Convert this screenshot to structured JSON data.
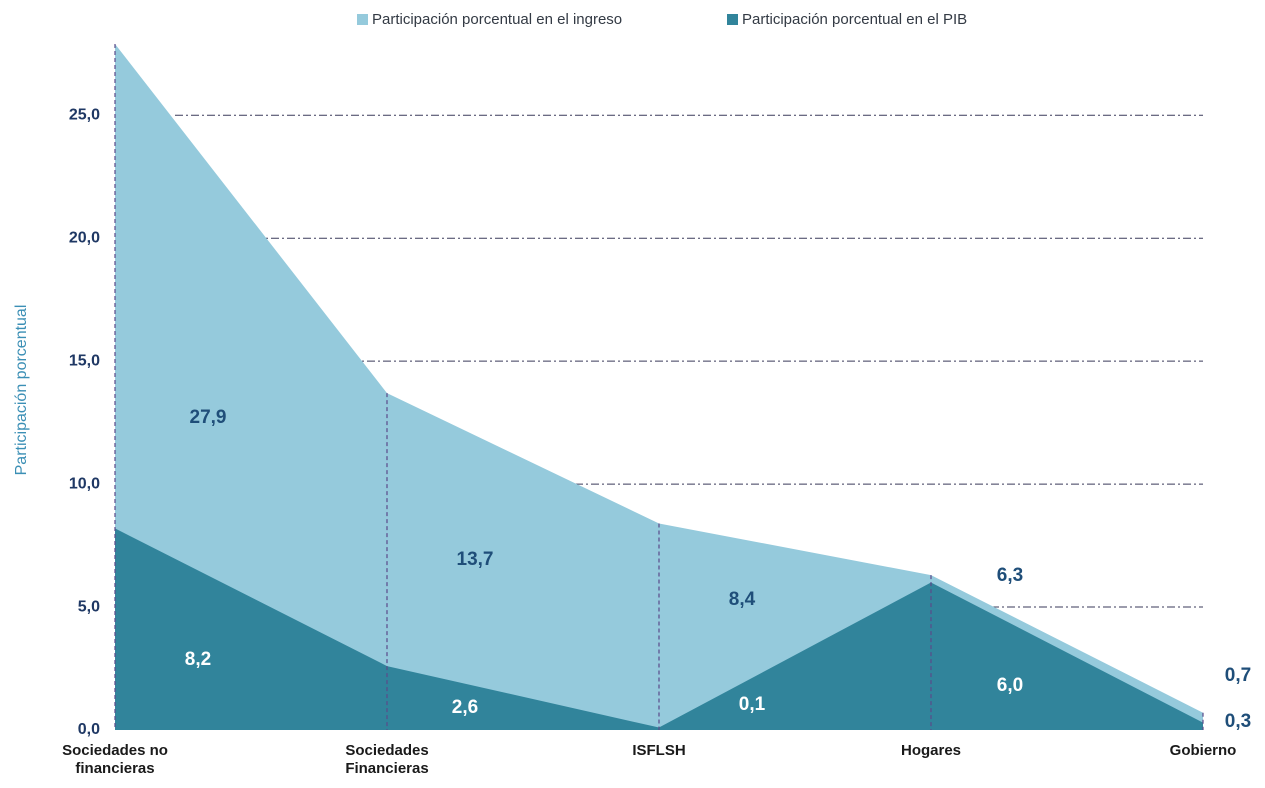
{
  "chart_data": {
    "type": "area",
    "y_axis_label": "Participación porcentual",
    "categories": [
      "Sociedades no financieras",
      "Sociedades Financieras",
      "ISFLSH",
      "Hogares",
      "Gobierno"
    ],
    "series": [
      {
        "name": "Participación porcentual en el ingreso",
        "color": "#95cadc",
        "values": [
          27.9,
          13.7,
          8.4,
          6.3,
          0.7
        ],
        "value_labels": [
          "27,9",
          "13,7",
          "8,4",
          "6,3",
          "0,7"
        ]
      },
      {
        "name": "Participación porcentual en el PIB",
        "color": "#31849b",
        "values": [
          8.2,
          2.6,
          0.1,
          6.0,
          0.3
        ],
        "value_labels": [
          "8,2",
          "2,6",
          "0,1",
          "6,0",
          "0,3"
        ]
      }
    ],
    "ylim": [
      0,
      27.9
    ],
    "yticks": [
      {
        "value": 0,
        "label": "0,0"
      },
      {
        "value": 5,
        "label": "5,0"
      },
      {
        "value": 10,
        "label": "10,0"
      },
      {
        "value": 15,
        "label": "15,0"
      },
      {
        "value": 20,
        "label": "20,0"
      },
      {
        "value": 25,
        "label": "25,0"
      }
    ],
    "grid": true,
    "legend": "top"
  }
}
